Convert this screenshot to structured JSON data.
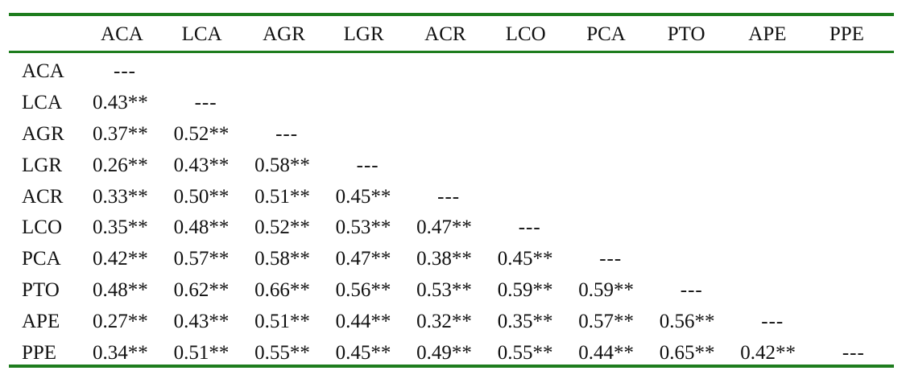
{
  "columns": [
    "ACA",
    "LCA",
    "AGR",
    "LGR",
    "ACR",
    "LCO",
    "PCA",
    "PTO",
    "APE",
    "PPE"
  ],
  "rows": [
    {
      "label": "ACA",
      "values": [
        "---"
      ]
    },
    {
      "label": "LCA",
      "values": [
        "0.43**",
        "---"
      ]
    },
    {
      "label": "AGR",
      "values": [
        "0.37**",
        "0.52**",
        "---"
      ]
    },
    {
      "label": "LGR",
      "values": [
        "0.26**",
        "0.43**",
        "0.58**",
        "---"
      ]
    },
    {
      "label": "ACR",
      "values": [
        "0.33**",
        "0.50**",
        "0.51**",
        "0.45**",
        "---"
      ]
    },
    {
      "label": "LCO",
      "values": [
        "0.35**",
        "0.48**",
        "0.52**",
        "0.53**",
        "0.47**",
        "---"
      ]
    },
    {
      "label": "PCA",
      "values": [
        "0.42**",
        "0.57**",
        "0.58**",
        "0.47**",
        "0.38**",
        "0.45**",
        "---"
      ]
    },
    {
      "label": "PTO",
      "values": [
        "0.48**",
        "0.62**",
        "0.66**",
        "0.56**",
        "0.53**",
        "0.59**",
        "0.59**",
        "---"
      ]
    },
    {
      "label": "APE",
      "values": [
        "0.27**",
        "0.43**",
        "0.51**",
        "0.44**",
        "0.32**",
        "0.35**",
        "0.57**",
        "0.56**",
        "---"
      ]
    },
    {
      "label": "PPE",
      "values": [
        "0.34**",
        "0.51**",
        "0.55**",
        "0.45**",
        "0.49**",
        "0.55**",
        "0.44**",
        "0.65**",
        "0.42**",
        "---"
      ]
    }
  ],
  "colors": {
    "rule": "#1e7d1e",
    "text": "#111111"
  }
}
